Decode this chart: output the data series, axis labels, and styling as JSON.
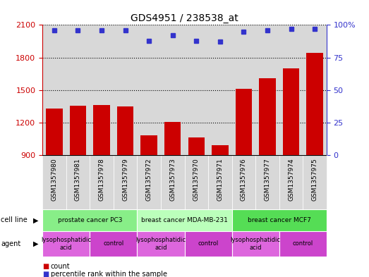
{
  "title": "GDS4951 / 238538_at",
  "samples": [
    "GSM1357980",
    "GSM1357981",
    "GSM1357978",
    "GSM1357979",
    "GSM1357972",
    "GSM1357973",
    "GSM1357970",
    "GSM1357971",
    "GSM1357976",
    "GSM1357977",
    "GSM1357974",
    "GSM1357975"
  ],
  "counts": [
    1330,
    1355,
    1365,
    1350,
    1080,
    1205,
    1060,
    990,
    1510,
    1610,
    1700,
    1840
  ],
  "percentiles": [
    96,
    96,
    96,
    96,
    88,
    92,
    88,
    87,
    95,
    96,
    97,
    97
  ],
  "ylim_left": [
    900,
    2100
  ],
  "ylim_right": [
    0,
    100
  ],
  "yticks_left": [
    900,
    1200,
    1500,
    1800,
    2100
  ],
  "yticks_right": [
    0,
    25,
    50,
    75,
    100
  ],
  "bar_color": "#cc0000",
  "dot_color": "#3333cc",
  "cell_lines": [
    {
      "label": "prostate cancer PC3",
      "start": 0,
      "end": 4,
      "color": "#88ee88"
    },
    {
      "label": "breast cancer MDA-MB-231",
      "start": 4,
      "end": 8,
      "color": "#bbffbb"
    },
    {
      "label": "breast cancer MCF7",
      "start": 8,
      "end": 12,
      "color": "#55dd55"
    }
  ],
  "agents": [
    {
      "label": "lysophosphatidic\nacid",
      "start": 0,
      "end": 2,
      "color": "#dd66dd"
    },
    {
      "label": "control",
      "start": 2,
      "end": 4,
      "color": "#cc44cc"
    },
    {
      "label": "lysophosphatidic\nacid",
      "start": 4,
      "end": 6,
      "color": "#dd66dd"
    },
    {
      "label": "control",
      "start": 6,
      "end": 8,
      "color": "#cc44cc"
    },
    {
      "label": "lysophosphatidic\nacid",
      "start": 8,
      "end": 10,
      "color": "#dd66dd"
    },
    {
      "label": "control",
      "start": 10,
      "end": 12,
      "color": "#cc44cc"
    }
  ],
  "cell_line_label": "cell line",
  "agent_label": "agent",
  "legend_count_label": "count",
  "legend_pct_label": "percentile rank within the sample",
  "sample_bg_color": "#d8d8d8",
  "plot_bg": "#ffffff",
  "grid_color": "#000000"
}
